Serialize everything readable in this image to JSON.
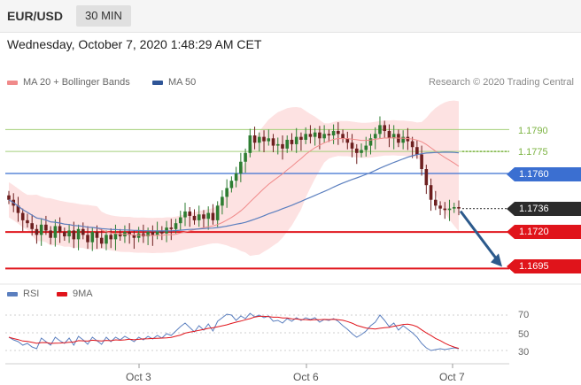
{
  "header": {
    "pair": "EUR/USD",
    "timeframe": "30 MIN"
  },
  "datetime": "Wednesday, October 7, 2020 1:48:29 AM CET",
  "legend": [
    {
      "label": "MA 20 + Bollinger Bands",
      "color": "#f08a8a"
    },
    {
      "label": "MA 50",
      "color": "#2f5597"
    }
  ],
  "credit": "Research © 2020 Trading Central",
  "colors": {
    "candle_up": "#2e7d32",
    "candle_down": "#6d1f1f",
    "band_fill": "#fde2e2",
    "ma20": "#f08a8a",
    "ma50": "#5b7fbf",
    "pivot": "#e0141b",
    "key": "#3b6fd1",
    "green_level": "#7cb342",
    "arrow": "#2c5a8c",
    "last": "#2b2b2b"
  },
  "levels": {
    "green1": "1.1790",
    "green2": "1.1775",
    "key": "1.1760",
    "last": "1.1736",
    "support1": "1.1720",
    "support2": "1.1695"
  },
  "rsi_legend": [
    {
      "label": "RSI",
      "color": "#5b7fbf"
    },
    {
      "label": "9MA",
      "color": "#e0141b"
    }
  ],
  "rsi_levels": [
    "70",
    "50",
    "30"
  ],
  "x_labels": [
    "Oct 3",
    "Oct 6",
    "Oct 7"
  ],
  "chart_data": {
    "type": "candlestick",
    "ylim": [
      1.1688,
      1.1812
    ],
    "levels": [
      1.179,
      1.1775,
      1.176,
      1.1736,
      1.172,
      1.1695
    ],
    "forecast_target": 1.1695,
    "close_series": [
      1.1742,
      1.1738,
      1.1733,
      1.1728,
      1.1726,
      1.1722,
      1.1718,
      1.1725,
      1.1721,
      1.1716,
      1.1724,
      1.172,
      1.1717,
      1.1721,
      1.1715,
      1.1722,
      1.1718,
      1.1713,
      1.172,
      1.1716,
      1.1712,
      1.1718,
      1.1715,
      1.1719,
      1.1717,
      1.172,
      1.1718,
      1.1716,
      1.1719,
      1.1717,
      1.172,
      1.1718,
      1.1721,
      1.1719,
      1.1723,
      1.1722,
      1.1726,
      1.173,
      1.1734,
      1.1731,
      1.1728,
      1.1732,
      1.1729,
      1.1733,
      1.1728,
      1.1738,
      1.1744,
      1.175,
      1.1755,
      1.176,
      1.1768,
      1.1774,
      1.1786,
      1.1781,
      1.1785,
      1.1782,
      1.1784,
      1.1779,
      1.178,
      1.1777,
      1.1783,
      1.178,
      1.1785,
      1.1783,
      1.1787,
      1.1785,
      1.1788,
      1.1784,
      1.1787,
      1.1786,
      1.1789,
      1.1787,
      1.1784,
      1.1781,
      1.1777,
      1.1774,
      1.1776,
      1.1779,
      1.1784,
      1.1787,
      1.1793,
      1.1789,
      1.1784,
      1.1787,
      1.1781,
      1.1785,
      1.1782,
      1.1778,
      1.1773,
      1.1763,
      1.1752,
      1.1742,
      1.1738,
      1.1736,
      1.1735,
      1.1736,
      1.1737,
      1.1736
    ],
    "rsi": [
      45,
      42,
      40,
      36,
      38,
      34,
      32,
      44,
      40,
      36,
      45,
      41,
      38,
      44,
      36,
      46,
      42,
      37,
      45,
      41,
      37,
      45,
      40,
      45,
      42,
      46,
      43,
      40,
      45,
      42,
      46,
      43,
      47,
      44,
      49,
      47,
      52,
      57,
      61,
      56,
      51,
      58,
      53,
      60,
      52,
      63,
      67,
      71,
      70,
      64,
      69,
      66,
      72,
      68,
      70,
      67,
      69,
      63,
      64,
      61,
      66,
      63,
      67,
      64,
      67,
      65,
      67,
      62,
      65,
      64,
      66,
      63,
      58,
      54,
      49,
      45,
      48,
      52,
      58,
      62,
      70,
      64,
      57,
      61,
      53,
      58,
      54,
      50,
      45,
      38,
      33,
      30,
      31,
      32,
      31,
      32,
      33,
      32
    ],
    "rsi_ylim": [
      22,
      80
    ]
  }
}
